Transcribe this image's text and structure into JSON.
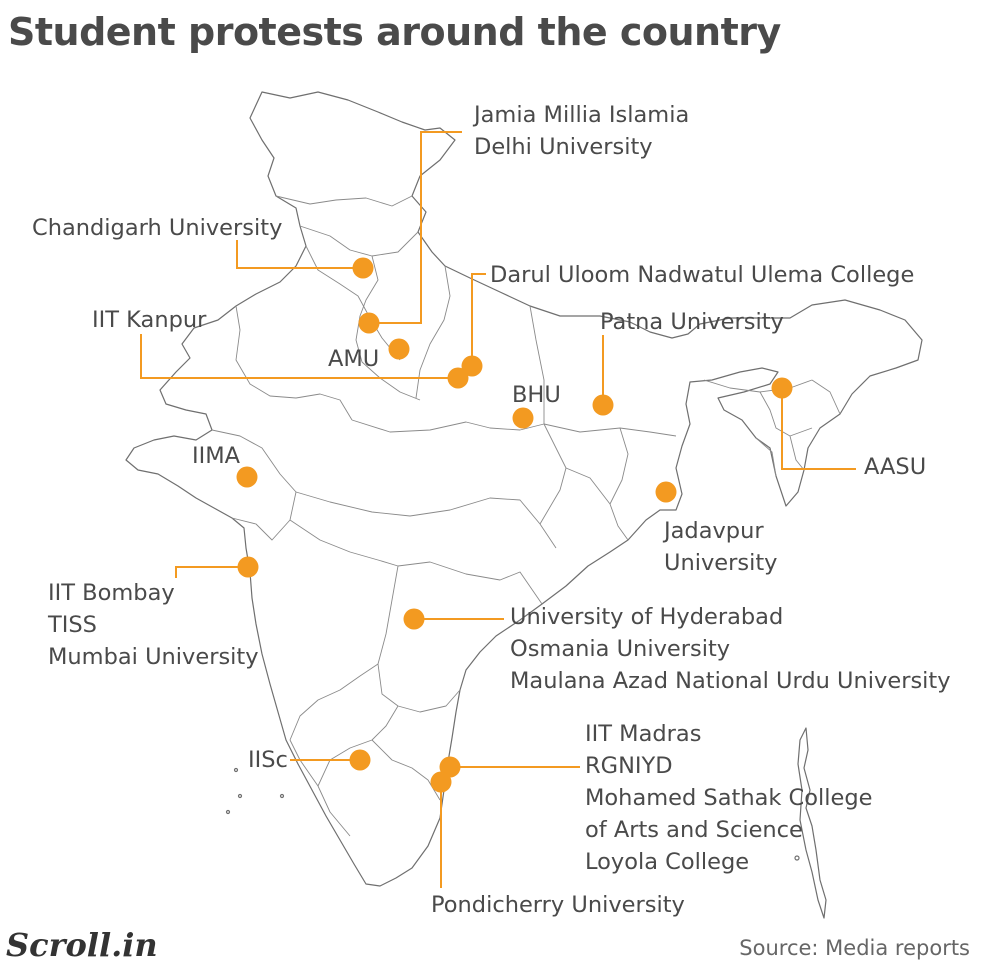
{
  "title": "Student protests around the country",
  "accent_color": "#f39a21",
  "map": {
    "region": "India",
    "locations": [
      {
        "id": "jamia-du",
        "lines": [
          "Jamia Millia Islamia",
          "Delhi University"
        ]
      },
      {
        "id": "chandigarh",
        "lines": [
          "Chandigarh University"
        ]
      },
      {
        "id": "darul-uloom",
        "lines": [
          "Darul Uloom Nadwatul Ulema College"
        ]
      },
      {
        "id": "iit-kanpur",
        "lines": [
          "IIT Kanpur"
        ]
      },
      {
        "id": "patna",
        "lines": [
          "Patna University"
        ]
      },
      {
        "id": "amu",
        "lines": [
          "AMU"
        ]
      },
      {
        "id": "bhu",
        "lines": [
          "BHU"
        ]
      },
      {
        "id": "aasu",
        "lines": [
          "AASU"
        ]
      },
      {
        "id": "iima",
        "lines": [
          "IIMA"
        ]
      },
      {
        "id": "jadavpur",
        "lines": [
          "Jadavpur",
          "University"
        ]
      },
      {
        "id": "mumbai",
        "lines": [
          "IIT Bombay",
          "TISS",
          "Mumbai University"
        ]
      },
      {
        "id": "hyderabad",
        "lines": [
          "University of Hyderabad",
          "Osmania University",
          "Maulana Azad National Urdu University"
        ]
      },
      {
        "id": "iisc",
        "lines": [
          "IISc"
        ]
      },
      {
        "id": "chennai",
        "lines": [
          "IIT Madras",
          "RGNIYD",
          "Mohamed Sathak College",
          "of Arts and Science",
          "Loyola College"
        ]
      },
      {
        "id": "pondicherry",
        "lines": [
          "Pondicherry University"
        ]
      }
    ]
  },
  "footer": {
    "logo": "Scroll.in",
    "source": "Source: Media reports"
  }
}
